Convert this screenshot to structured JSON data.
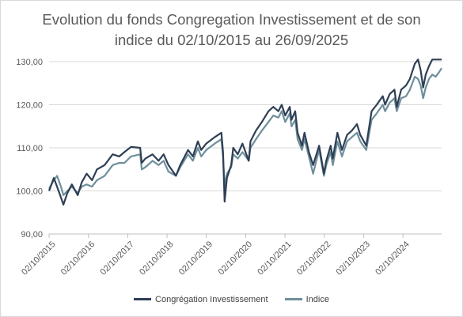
{
  "chart_data": {
    "type": "line",
    "title_line1": "Evolution du fonds Congregation Investissement et de son",
    "title_line2": "indice du 02/10/2015 au 26/09/2025",
    "ylim": [
      90,
      130
    ],
    "y_ticks": [
      {
        "value": 90,
        "label": "90,00"
      },
      {
        "value": 100,
        "label": "100,00"
      },
      {
        "value": 110,
        "label": "110,00"
      },
      {
        "value": 120,
        "label": "120,00"
      },
      {
        "value": 130,
        "label": "130,00"
      }
    ],
    "x_range": [
      "2015-10-02",
      "2025-09-26"
    ],
    "x_ticks": [
      "02/10/2015",
      "02/10/2016",
      "02/10/2017",
      "02/10/2018",
      "02/10/2019",
      "02/10/2020",
      "02/10/2021",
      "02/10/2022",
      "02/10/2023",
      "02/10/2024"
    ],
    "grid": "horizontal",
    "legend_position": "bottom",
    "series": [
      {
        "name": "Congrégation Investissement",
        "color": "#2e3f55",
        "points": [
          [
            "2015-10-02",
            100.0
          ],
          [
            "2015-11-15",
            103.0
          ],
          [
            "2015-12-15",
            101.0
          ],
          [
            "2016-01-20",
            98.5
          ],
          [
            "2016-02-12",
            96.8
          ],
          [
            "2016-03-20",
            99.5
          ],
          [
            "2016-05-01",
            101.5
          ],
          [
            "2016-06-24",
            99.0
          ],
          [
            "2016-08-01",
            102.0
          ],
          [
            "2016-09-15",
            104.0
          ],
          [
            "2016-11-04",
            102.5
          ],
          [
            "2016-12-20",
            105.0
          ],
          [
            "2017-03-01",
            106.0
          ],
          [
            "2017-05-15",
            108.5
          ],
          [
            "2017-07-15",
            108.0
          ],
          [
            "2017-09-01",
            109.0
          ],
          [
            "2017-11-01",
            110.2
          ],
          [
            "2018-01-25",
            110.0
          ],
          [
            "2018-02-09",
            106.5
          ],
          [
            "2018-03-15",
            107.5
          ],
          [
            "2018-05-20",
            108.5
          ],
          [
            "2018-07-15",
            107.0
          ],
          [
            "2018-09-01",
            108.5
          ],
          [
            "2018-10-15",
            106.0
          ],
          [
            "2018-12-24",
            103.5
          ],
          [
            "2019-02-01",
            106.0
          ],
          [
            "2019-04-15",
            109.5
          ],
          [
            "2019-05-30",
            108.0
          ],
          [
            "2019-07-15",
            111.5
          ],
          [
            "2019-08-15",
            109.5
          ],
          [
            "2019-10-01",
            111.0
          ],
          [
            "2019-12-20",
            112.5
          ],
          [
            "2020-02-19",
            113.5
          ],
          [
            "2020-03-05",
            109.0
          ],
          [
            "2020-03-20",
            97.5
          ],
          [
            "2020-04-10",
            103.0
          ],
          [
            "2020-05-20",
            106.0
          ],
          [
            "2020-06-08",
            110.0
          ],
          [
            "2020-07-20",
            108.5
          ],
          [
            "2020-09-01",
            111.0
          ],
          [
            "2020-10-30",
            107.0
          ],
          [
            "2020-11-15",
            111.5
          ],
          [
            "2021-01-05",
            114.0
          ],
          [
            "2021-03-01",
            116.0
          ],
          [
            "2021-05-01",
            118.5
          ],
          [
            "2021-06-15",
            119.5
          ],
          [
            "2021-08-01",
            118.5
          ],
          [
            "2021-09-01",
            120.0
          ],
          [
            "2021-10-04",
            117.5
          ],
          [
            "2021-11-15",
            119.5
          ],
          [
            "2021-12-01",
            116.5
          ],
          [
            "2022-01-05",
            118.5
          ],
          [
            "2022-01-27",
            113.5
          ],
          [
            "2022-03-08",
            110.5
          ],
          [
            "2022-04-01",
            113.5
          ],
          [
            "2022-05-12",
            109.0
          ],
          [
            "2022-06-20",
            106.0
          ],
          [
            "2022-07-15",
            108.0
          ],
          [
            "2022-08-15",
            110.5
          ],
          [
            "2022-09-29",
            104.0
          ],
          [
            "2022-10-20",
            107.0
          ],
          [
            "2022-11-30",
            110.5
          ],
          [
            "2022-12-20",
            107.5
          ],
          [
            "2023-02-01",
            113.5
          ],
          [
            "2023-03-15",
            109.5
          ],
          [
            "2023-05-01",
            113.0
          ],
          [
            "2023-06-15",
            114.0
          ],
          [
            "2023-08-01",
            115.5
          ],
          [
            "2023-09-01",
            113.0
          ],
          [
            "2023-10-27",
            110.5
          ],
          [
            "2023-12-15",
            118.5
          ],
          [
            "2024-02-01",
            120.0
          ],
          [
            "2024-03-28",
            122.0
          ],
          [
            "2024-04-19",
            120.0
          ],
          [
            "2024-06-01",
            122.5
          ],
          [
            "2024-07-15",
            123.5
          ],
          [
            "2024-08-05",
            119.5
          ],
          [
            "2024-09-15",
            123.5
          ],
          [
            "2024-10-31",
            124.5
          ],
          [
            "2024-12-05",
            126.0
          ],
          [
            "2025-01-20",
            129.5
          ],
          [
            "2025-02-19",
            130.5
          ],
          [
            "2025-03-15",
            128.0
          ],
          [
            "2025-04-08",
            124.0
          ],
          [
            "2025-05-01",
            127.0
          ],
          [
            "2025-06-01",
            129.0
          ],
          [
            "2025-07-01",
            130.5
          ],
          [
            "2025-08-01",
            130.5
          ],
          [
            "2025-09-01",
            130.5
          ],
          [
            "2025-09-26",
            130.5
          ]
        ]
      },
      {
        "name": "Indice",
        "color": "#6e8f9b",
        "points": [
          [
            "2015-10-02",
            100.5
          ],
          [
            "2015-11-15",
            102.5
          ],
          [
            "2015-12-15",
            103.5
          ],
          [
            "2016-01-20",
            101.0
          ],
          [
            "2016-02-12",
            99.0
          ],
          [
            "2016-03-20",
            100.0
          ],
          [
            "2016-05-01",
            101.0
          ],
          [
            "2016-06-24",
            99.5
          ],
          [
            "2016-08-01",
            101.0
          ],
          [
            "2016-09-15",
            101.5
          ],
          [
            "2016-11-04",
            101.0
          ],
          [
            "2016-12-20",
            102.5
          ],
          [
            "2017-03-01",
            103.5
          ],
          [
            "2017-05-15",
            106.0
          ],
          [
            "2017-07-15",
            106.5
          ],
          [
            "2017-09-01",
            106.5
          ],
          [
            "2017-11-01",
            108.0
          ],
          [
            "2018-01-25",
            108.5
          ],
          [
            "2018-02-09",
            105.0
          ],
          [
            "2018-03-15",
            105.5
          ],
          [
            "2018-05-20",
            107.0
          ],
          [
            "2018-07-15",
            106.0
          ],
          [
            "2018-09-01",
            107.0
          ],
          [
            "2018-10-15",
            104.5
          ],
          [
            "2018-12-24",
            103.5
          ],
          [
            "2019-02-01",
            105.5
          ],
          [
            "2019-04-15",
            108.5
          ],
          [
            "2019-05-30",
            107.0
          ],
          [
            "2019-07-15",
            110.0
          ],
          [
            "2019-08-15",
            108.0
          ],
          [
            "2019-10-01",
            109.5
          ],
          [
            "2019-12-20",
            111.0
          ],
          [
            "2020-02-19",
            112.0
          ],
          [
            "2020-03-05",
            108.0
          ],
          [
            "2020-03-20",
            101.0
          ],
          [
            "2020-04-10",
            104.0
          ],
          [
            "2020-05-20",
            105.5
          ],
          [
            "2020-06-08",
            108.5
          ],
          [
            "2020-07-20",
            107.5
          ],
          [
            "2020-09-01",
            109.0
          ],
          [
            "2020-10-30",
            107.0
          ],
          [
            "2020-11-15",
            110.0
          ],
          [
            "2021-01-05",
            112.0
          ],
          [
            "2021-03-01",
            114.0
          ],
          [
            "2021-05-01",
            116.0
          ],
          [
            "2021-06-15",
            117.5
          ],
          [
            "2021-08-01",
            117.0
          ],
          [
            "2021-09-01",
            118.5
          ],
          [
            "2021-10-04",
            116.0
          ],
          [
            "2021-11-15",
            118.0
          ],
          [
            "2021-12-01",
            115.0
          ],
          [
            "2022-01-05",
            116.5
          ],
          [
            "2022-01-27",
            112.0
          ],
          [
            "2022-03-08",
            109.5
          ],
          [
            "2022-04-01",
            112.0
          ],
          [
            "2022-05-12",
            108.0
          ],
          [
            "2022-06-20",
            104.0
          ],
          [
            "2022-07-15",
            106.5
          ],
          [
            "2022-08-15",
            109.5
          ],
          [
            "2022-09-29",
            103.5
          ],
          [
            "2022-10-20",
            106.0
          ],
          [
            "2022-11-30",
            109.0
          ],
          [
            "2022-12-20",
            106.0
          ],
          [
            "2023-02-01",
            111.5
          ],
          [
            "2023-03-15",
            108.0
          ],
          [
            "2023-05-01",
            111.5
          ],
          [
            "2023-06-15",
            112.5
          ],
          [
            "2023-08-01",
            113.5
          ],
          [
            "2023-09-01",
            111.5
          ],
          [
            "2023-10-27",
            109.5
          ],
          [
            "2023-12-15",
            116.5
          ],
          [
            "2024-02-01",
            118.0
          ],
          [
            "2024-03-28",
            120.0
          ],
          [
            "2024-04-19",
            118.5
          ],
          [
            "2024-06-01",
            120.5
          ],
          [
            "2024-07-15",
            121.5
          ],
          [
            "2024-08-05",
            118.5
          ],
          [
            "2024-09-15",
            121.5
          ],
          [
            "2024-10-31",
            122.0
          ],
          [
            "2024-12-05",
            123.5
          ],
          [
            "2025-01-20",
            126.5
          ],
          [
            "2025-02-19",
            126.0
          ],
          [
            "2025-03-15",
            124.5
          ],
          [
            "2025-04-08",
            121.5
          ],
          [
            "2025-05-01",
            124.0
          ],
          [
            "2025-06-01",
            126.0
          ],
          [
            "2025-07-01",
            127.0
          ],
          [
            "2025-08-01",
            126.5
          ],
          [
            "2025-09-01",
            127.5
          ],
          [
            "2025-09-26",
            128.5
          ]
        ]
      }
    ]
  }
}
